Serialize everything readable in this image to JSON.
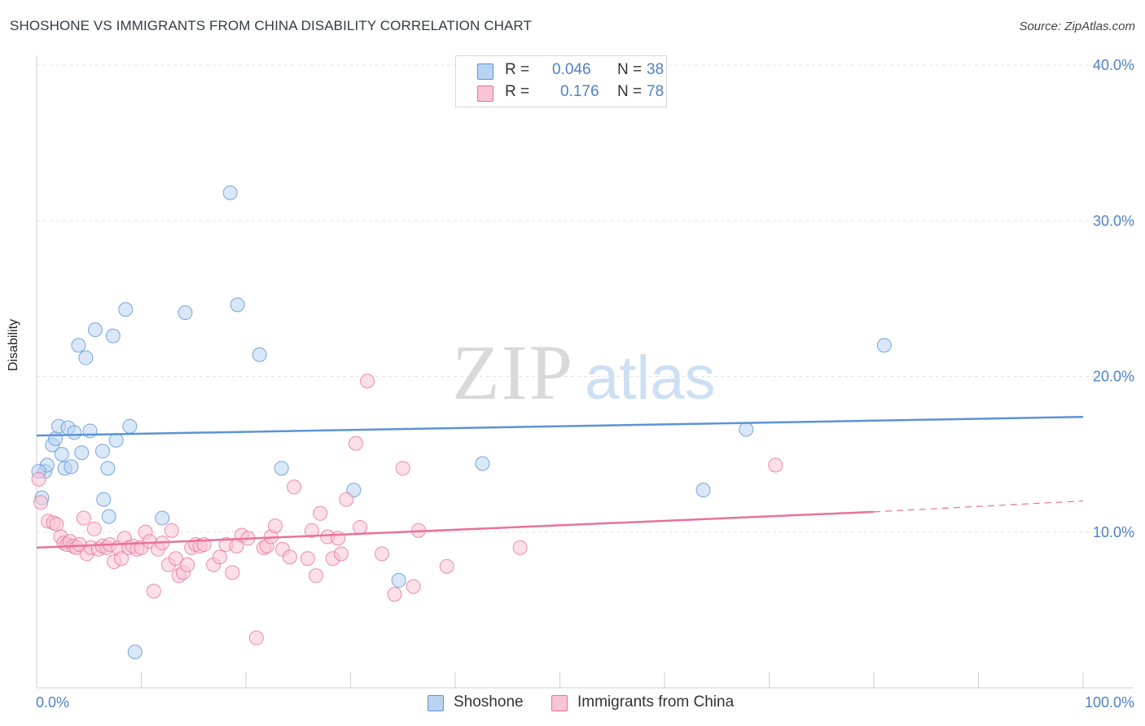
{
  "title": "SHOSHONE VS IMMIGRANTS FROM CHINA DISABILITY CORRELATION CHART",
  "source": "Source: ZipAtlas.com",
  "watermark": {
    "zip": "ZIP",
    "atlas": "atlas"
  },
  "legend": {
    "rows": [
      {
        "r_label": "R =",
        "r_value": "0.046",
        "n_label": "N =",
        "n_value": "38",
        "color": "#b9d3f2"
      },
      {
        "r_label": "R =",
        "r_value": "0.176",
        "n_label": "N =",
        "n_value": "78",
        "color": "#f9c4d4"
      }
    ]
  },
  "bottom_legend": [
    {
      "label": "Shoshone",
      "color": "#b9d3f2"
    },
    {
      "label": "Immigrants from China",
      "color": "#f9c4d4"
    }
  ],
  "chart_data": {
    "type": "scatter",
    "title": "SHOSHONE VS IMMIGRANTS FROM CHINA DISABILITY CORRELATION CHART",
    "xlabel": "",
    "ylabel": "Disability",
    "xlim": [
      0,
      100
    ],
    "ylim": [
      0,
      40
    ],
    "x_tick_labels": [
      "0.0%",
      "100.0%"
    ],
    "y_ticks": [
      10,
      20,
      30,
      40
    ],
    "y_tick_labels": [
      "10.0%",
      "20.0%",
      "30.0%",
      "40.0%"
    ],
    "grid": true,
    "series": [
      {
        "name": "Shoshone",
        "color": "#5b93d6",
        "fill": "#b9d3f2",
        "trend": {
          "x": [
            0,
            100
          ],
          "y": [
            16.2,
            17.4
          ],
          "dashed_from": null
        },
        "points": [
          [
            0.5,
            12.2
          ],
          [
            0.8,
            13.9
          ],
          [
            1.0,
            14.3
          ],
          [
            1.5,
            15.6
          ],
          [
            1.8,
            16.0
          ],
          [
            2.1,
            16.8
          ],
          [
            2.4,
            15.0
          ],
          [
            2.7,
            14.1
          ],
          [
            3.0,
            16.7
          ],
          [
            3.3,
            14.2
          ],
          [
            3.6,
            16.4
          ],
          [
            4.0,
            22.0
          ],
          [
            4.3,
            15.1
          ],
          [
            4.7,
            21.2
          ],
          [
            5.1,
            16.5
          ],
          [
            5.6,
            23.0
          ],
          [
            6.4,
            12.1
          ],
          [
            6.3,
            15.2
          ],
          [
            6.8,
            14.1
          ],
          [
            6.9,
            11.0
          ],
          [
            7.3,
            22.6
          ],
          [
            7.6,
            15.9
          ],
          [
            8.5,
            24.3
          ],
          [
            8.9,
            16.8
          ],
          [
            9.4,
            2.3
          ],
          [
            12.0,
            10.9
          ],
          [
            14.2,
            24.1
          ],
          [
            18.5,
            31.8
          ],
          [
            19.2,
            24.6
          ],
          [
            21.3,
            21.4
          ],
          [
            23.4,
            14.1
          ],
          [
            30.3,
            12.7
          ],
          [
            34.6,
            6.9
          ],
          [
            42.6,
            14.4
          ],
          [
            63.7,
            12.7
          ],
          [
            67.8,
            16.6
          ],
          [
            81.0,
            22.0
          ],
          [
            0.2,
            13.9
          ]
        ]
      },
      {
        "name": "Immigrants from China",
        "color": "#e8729a",
        "fill": "#f9c4d4",
        "trend": {
          "x": [
            0,
            80,
            100
          ],
          "y": [
            9.0,
            11.3,
            12.0
          ],
          "dashed_from": 80
        },
        "points": [
          [
            0.2,
            13.4
          ],
          [
            0.4,
            11.9
          ],
          [
            1.1,
            10.7
          ],
          [
            1.6,
            10.6
          ],
          [
            1.9,
            10.5
          ],
          [
            2.3,
            9.7
          ],
          [
            2.6,
            9.3
          ],
          [
            2.9,
            9.2
          ],
          [
            3.2,
            9.4
          ],
          [
            3.5,
            9.1
          ],
          [
            3.8,
            9.0
          ],
          [
            4.1,
            9.2
          ],
          [
            4.5,
            10.9
          ],
          [
            4.8,
            8.6
          ],
          [
            5.2,
            9.0
          ],
          [
            5.5,
            10.2
          ],
          [
            5.9,
            8.9
          ],
          [
            6.3,
            9.1
          ],
          [
            6.7,
            9.0
          ],
          [
            7.0,
            9.2
          ],
          [
            7.4,
            8.1
          ],
          [
            7.8,
            9.0
          ],
          [
            8.1,
            8.3
          ],
          [
            8.4,
            9.6
          ],
          [
            8.8,
            9.0
          ],
          [
            9.2,
            9.1
          ],
          [
            9.6,
            8.9
          ],
          [
            10.0,
            9.0
          ],
          [
            10.4,
            10.0
          ],
          [
            10.8,
            9.4
          ],
          [
            11.2,
            6.2
          ],
          [
            11.6,
            8.9
          ],
          [
            12.0,
            9.3
          ],
          [
            12.6,
            7.9
          ],
          [
            12.9,
            10.1
          ],
          [
            13.3,
            8.3
          ],
          [
            13.6,
            7.2
          ],
          [
            14.0,
            7.4
          ],
          [
            14.4,
            7.9
          ],
          [
            14.8,
            9.0
          ],
          [
            15.2,
            9.2
          ],
          [
            15.6,
            9.1
          ],
          [
            16.0,
            9.2
          ],
          [
            16.9,
            7.9
          ],
          [
            17.5,
            8.4
          ],
          [
            18.1,
            9.2
          ],
          [
            18.7,
            7.4
          ],
          [
            19.1,
            9.1
          ],
          [
            19.6,
            9.8
          ],
          [
            20.2,
            9.6
          ],
          [
            21.0,
            3.2
          ],
          [
            21.7,
            9.0
          ],
          [
            22.0,
            9.1
          ],
          [
            22.4,
            9.7
          ],
          [
            22.8,
            10.4
          ],
          [
            23.5,
            8.9
          ],
          [
            24.2,
            8.4
          ],
          [
            24.6,
            12.9
          ],
          [
            25.9,
            8.3
          ],
          [
            26.3,
            10.1
          ],
          [
            26.7,
            7.2
          ],
          [
            27.1,
            11.2
          ],
          [
            27.8,
            9.7
          ],
          [
            28.3,
            8.3
          ],
          [
            28.8,
            9.6
          ],
          [
            29.1,
            8.6
          ],
          [
            29.6,
            12.1
          ],
          [
            30.5,
            15.7
          ],
          [
            30.9,
            10.3
          ],
          [
            31.6,
            19.7
          ],
          [
            33.0,
            8.6
          ],
          [
            34.2,
            6.0
          ],
          [
            35.0,
            14.1
          ],
          [
            36.0,
            6.5
          ],
          [
            36.5,
            10.1
          ],
          [
            39.2,
            7.8
          ],
          [
            46.2,
            9.0
          ],
          [
            70.6,
            14.3
          ]
        ]
      }
    ]
  }
}
